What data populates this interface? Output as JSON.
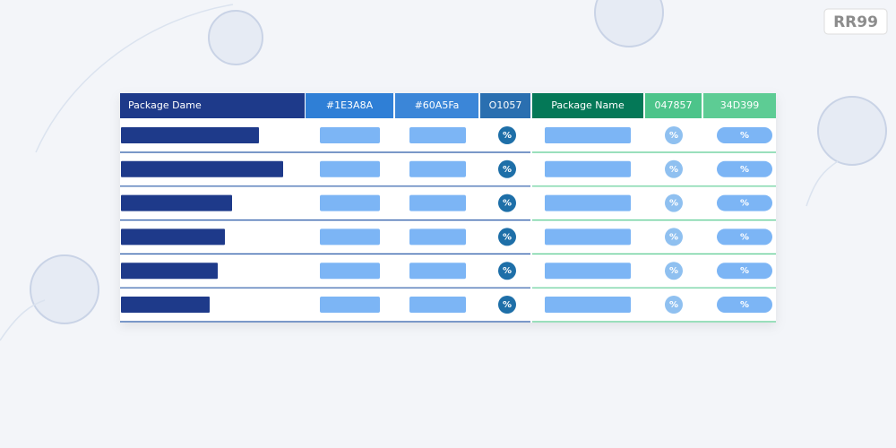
{
  "logo": "RR99",
  "table": {
    "header": [
      "Package Dame",
      "#1E3A8A",
      "#60A5Fa",
      "O1057",
      "Package Name",
      "047857",
      "34D399"
    ],
    "rows": [
      [
        "%",
        "%",
        "%"
      ],
      [
        "%",
        "%",
        "%"
      ],
      [
        "%",
        "%",
        "%"
      ],
      [
        "%",
        "%",
        "%"
      ],
      [
        "%",
        "%",
        "%"
      ],
      [
        "%",
        "%",
        "%"
      ]
    ]
  }
}
